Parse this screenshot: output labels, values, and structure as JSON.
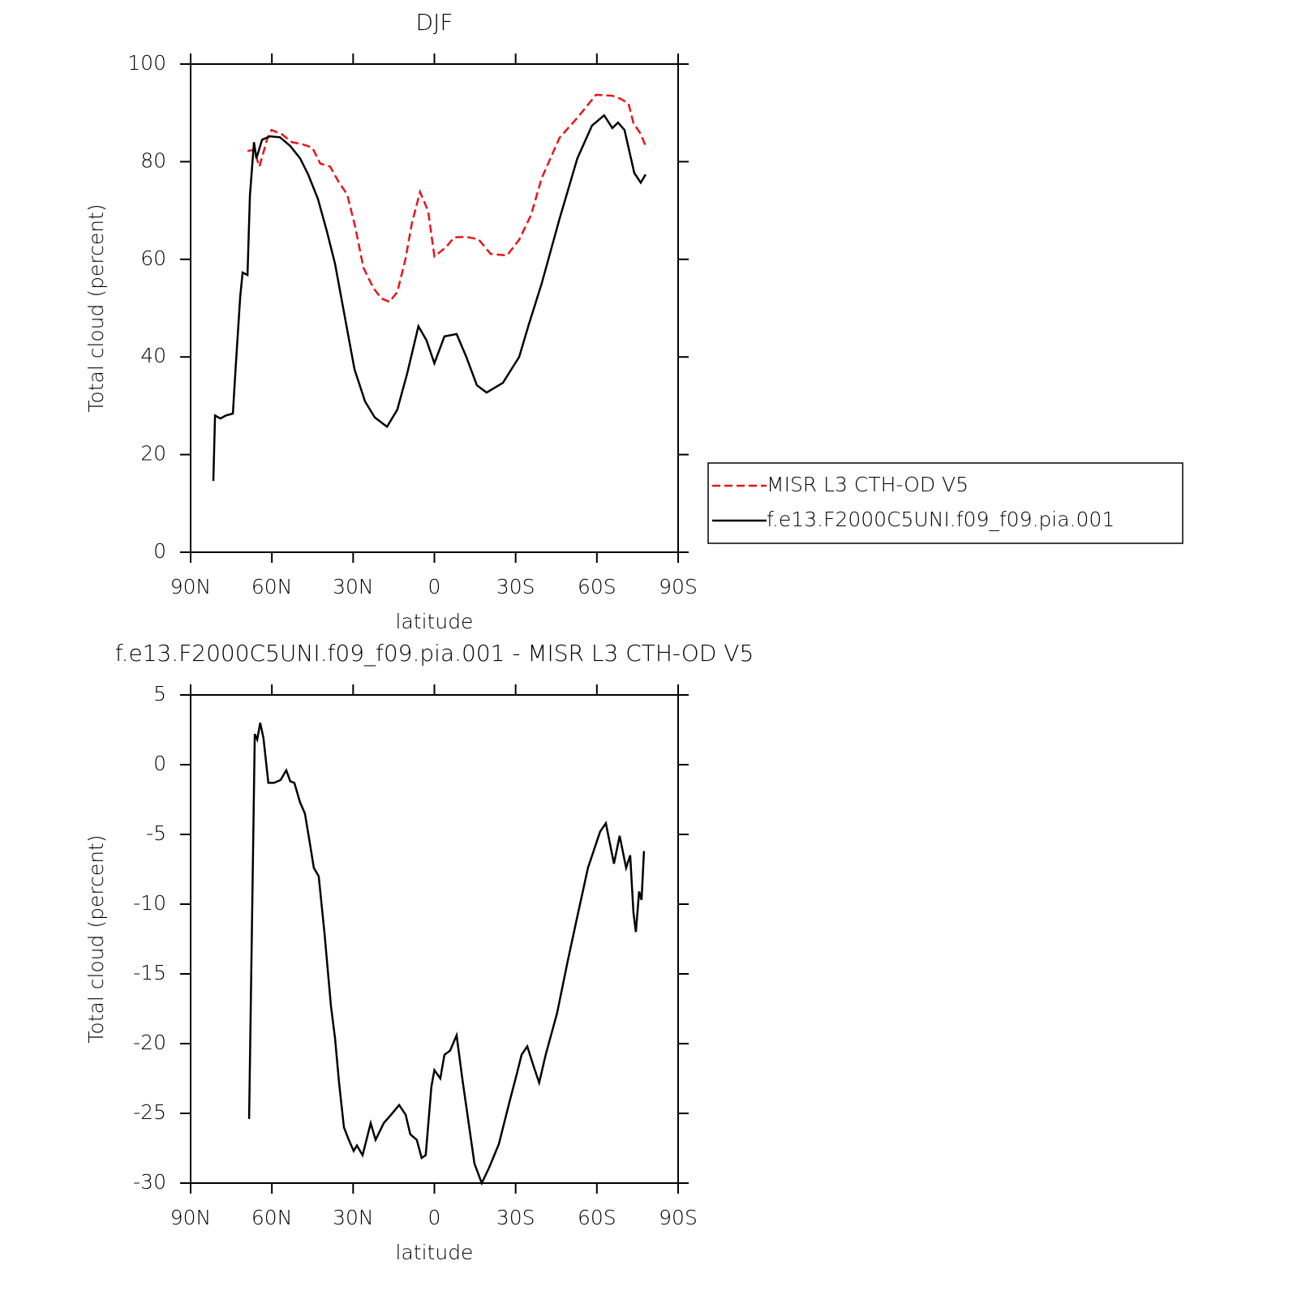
{
  "chart_data": [
    {
      "type": "line",
      "title": "DJF",
      "xlabel": "latitude",
      "ylabel": "Total cloud (percent)",
      "xlim": [
        90,
        -90
      ],
      "xticks": [
        {
          "value": 90,
          "label": "90N"
        },
        {
          "value": 60,
          "label": "60N"
        },
        {
          "value": 30,
          "label": "30N"
        },
        0,
        {
          "value": -30,
          "label": "30S"
        },
        {
          "value": -60,
          "label": "60S"
        },
        {
          "value": -90,
          "label": "90S"
        }
      ],
      "ylim": [
        0,
        100
      ],
      "yticks": [
        0,
        20,
        40,
        60,
        80,
        100
      ],
      "legend": "right",
      "series": [
        {
          "name": "MISR L3 CTH-OD V5",
          "color": "#e8141b",
          "line_style": "dashed",
          "x": [
            69,
            66.6,
            64.6,
            61.6,
            60.1,
            56.5,
            52.6,
            49,
            45.1,
            42.1,
            38.5,
            35.2,
            32.2,
            29.2,
            26.2,
            22.6,
            19.6,
            16.6,
            13.7,
            10.7,
            8.3,
            5.3,
            2.3,
            0,
            -4.3,
            -7.3,
            -11.8,
            -16.3,
            -20.8,
            -26.8,
            -31.3,
            -35.7,
            -39.6,
            -46.2,
            -52.8,
            -59.7,
            -65.7,
            -68.7,
            -71.7,
            -73.5,
            -76.2,
            -78
          ],
          "values": [
            82.2,
            82.4,
            79,
            84.9,
            86.5,
            85.7,
            84,
            83.6,
            82.9,
            79.6,
            79,
            75.7,
            73.3,
            66.6,
            58.3,
            54.2,
            52,
            51.3,
            53.3,
            60,
            67.4,
            73.8,
            69.9,
            60.6,
            62.5,
            64.5,
            64.6,
            64.1,
            61.1,
            60.8,
            64,
            69.1,
            76.6,
            84.9,
            89,
            93.7,
            93.5,
            92.9,
            91.9,
            87.9,
            85.7,
            83.2
          ]
        },
        {
          "name": "f.e13.F2000C5UNI.f09_f09.pia.001",
          "color": "#000000",
          "line_style": "solid",
          "x": [
            81.6,
            81,
            79,
            77,
            74.4,
            73.5,
            71.7,
            70.8,
            69,
            68.1,
            66.6,
            65.7,
            63.6,
            60.7,
            57,
            53.2,
            49.6,
            46.6,
            43,
            39.7,
            36.7,
            33.1,
            29.5,
            25.6,
            22,
            17.5,
            13.7,
            10,
            5.9,
            2.9,
            0,
            -3.7,
            -8.2,
            -11.8,
            -15.7,
            -19.3,
            -25.3,
            -31.3,
            -34.9,
            -39.6,
            -46.2,
            -52.8,
            -58.2,
            -62.7,
            -65.7,
            -67.8,
            -70.2,
            -73.8,
            -76.2,
            -78
          ],
          "values": [
            14.6,
            28,
            27.4,
            28,
            28.4,
            36.7,
            52.3,
            57.3,
            56.8,
            73,
            84,
            80.7,
            84.5,
            85.2,
            85,
            83.2,
            80.7,
            77.4,
            72.4,
            65.8,
            59.1,
            48.3,
            37.5,
            30.9,
            27.6,
            25.7,
            29.2,
            36.7,
            46.3,
            43.4,
            38.7,
            44.2,
            44.7,
            40,
            34.2,
            32.7,
            34.7,
            40,
            46.7,
            55,
            68.3,
            80.7,
            87.4,
            89.5,
            86.9,
            88,
            86.5,
            77.7,
            75.7,
            77.4
          ]
        }
      ]
    },
    {
      "type": "line",
      "title": "f.e13.F2000C5UNI.f09_f09.pia.001 - MISR L3 CTH-OD V5",
      "xlabel": "latitude",
      "ylabel": "Total cloud (percent)",
      "xlim": [
        90,
        -90
      ],
      "xticks": [
        {
          "value": 90,
          "label": "90N"
        },
        {
          "value": 60,
          "label": "60N"
        },
        {
          "value": 30,
          "label": "30N"
        },
        0,
        {
          "value": -30,
          "label": "30S"
        },
        {
          "value": -60,
          "label": "60S"
        },
        {
          "value": -90,
          "label": "90S"
        }
      ],
      "ylim": [
        -30,
        5
      ],
      "yticks": [
        -30,
        -25,
        -20,
        -15,
        -10,
        -5,
        0,
        5
      ],
      "series": [
        {
          "color": "#000000",
          "line_style": "solid",
          "x": [
            68.4,
            66.3,
            65.4,
            64.3,
            63.1,
            61.3,
            59.2,
            56.8,
            54.7,
            53.2,
            51.7,
            49.6,
            47.8,
            46,
            44.5,
            42.7,
            40.6,
            38.2,
            36.7,
            35.2,
            33.4,
            31.6,
            29.8,
            28.6,
            26.5,
            23.5,
            21.7,
            18.7,
            16,
            13,
            10.6,
            8.9,
            6.5,
            4.7,
            3.2,
            1.1,
            0,
            -2.2,
            -3.7,
            -5.8,
            -8.2,
            -10.3,
            -14.8,
            -17.5,
            -20.2,
            -23.8,
            -27.7,
            -30.4,
            -32.2,
            -34.3,
            -36.6,
            -38.7,
            -41.1,
            -45.3,
            -49.2,
            -53.1,
            -56.7,
            -61.2,
            -63.3,
            -66.3,
            -68.4,
            -70.8,
            -72.3,
            -73.5,
            -74.4,
            -75.6,
            -76.5,
            -77.4
          ],
          "values": [
            -25.4,
            2.2,
            1.8,
            3,
            1.9,
            -1.3,
            -1.3,
            -1.1,
            -0.4,
            -1.2,
            -1.3,
            -2.7,
            -3.5,
            -5.6,
            -7.4,
            -8,
            -12,
            -17.3,
            -19.6,
            -22.8,
            -26,
            -26.9,
            -27.7,
            -27.3,
            -28,
            -25.7,
            -26.9,
            -25.7,
            -25.1,
            -24.4,
            -25.1,
            -26.5,
            -26.9,
            -28.2,
            -28,
            -23.1,
            -21.9,
            -22.5,
            -20.8,
            -20.5,
            -19.4,
            -22.5,
            -28.6,
            -30,
            -28.9,
            -27.2,
            -24.2,
            -22.2,
            -20.8,
            -20.2,
            -21.6,
            -22.8,
            -20.8,
            -17.8,
            -14.1,
            -10.6,
            -7.4,
            -4.8,
            -4.2,
            -7.1,
            -5.1,
            -7.4,
            -6.5,
            -10.6,
            -12,
            -9.1,
            -9.7,
            -6.2
          ]
        }
      ]
    }
  ]
}
